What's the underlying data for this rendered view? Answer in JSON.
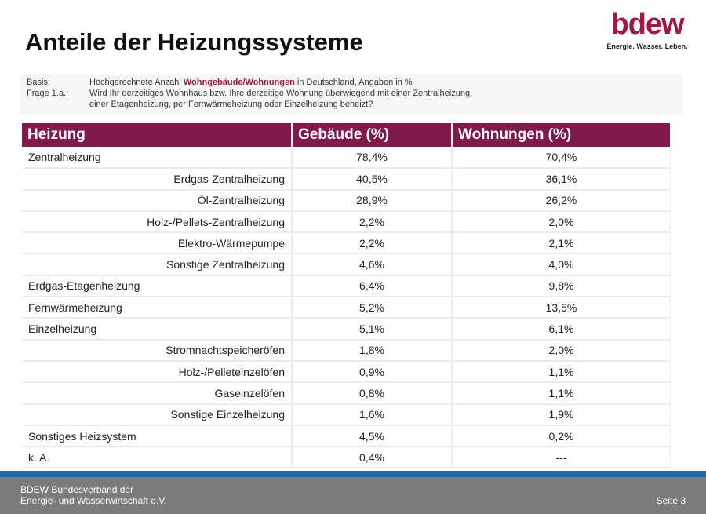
{
  "title": "Anteile der Heizungssysteme",
  "logo": {
    "word": "bdew",
    "tagline": "Energie. Wasser. Leben."
  },
  "info": {
    "basis_label": "Basis:",
    "basis_pre": "Hochgerechnete Anzahl ",
    "basis_hl": "Wohngebäude/Wohnungen",
    "basis_post": " in Deutschland, Angaben in %",
    "frage_label": "Frage 1.a.:",
    "frage_line1": "Wird Ihr derzeitiges Wohnhaus bzw. Ihre derzeitige Wohnung überwiegend mit einer Zentralheizung,",
    "frage_line2": "einer Etagenheizung, per Fernwärmeheizung oder Einzelheizung beheizt?"
  },
  "table": {
    "headers": [
      "Heizung",
      "Gebäude (%)",
      "Wohnungen (%)"
    ],
    "rows": [
      {
        "label": "Zentralheizung",
        "sub": false,
        "gebaeude": "78,4%",
        "wohnungen": "70,4%"
      },
      {
        "label": "Erdgas-Zentralheizung",
        "sub": true,
        "gebaeude": "40,5%",
        "wohnungen": "36,1%"
      },
      {
        "label": "Öl-Zentralheizung",
        "sub": true,
        "gebaeude": "28,9%",
        "wohnungen": "26,2%"
      },
      {
        "label": "Holz-/Pellets-Zentralheizung",
        "sub": true,
        "gebaeude": "2,2%",
        "wohnungen": "2,0%"
      },
      {
        "label": "Elektro-Wärmepumpe",
        "sub": true,
        "gebaeude": "2,2%",
        "wohnungen": "2,1%"
      },
      {
        "label": "Sonstige Zentralheizung",
        "sub": true,
        "gebaeude": "4,6%",
        "wohnungen": "4,0%"
      },
      {
        "label": "Erdgas-Etagenheizung",
        "sub": false,
        "gebaeude": "6,4%",
        "wohnungen": "9,8%"
      },
      {
        "label": "Fernwärmeheizung",
        "sub": false,
        "gebaeude": "5,2%",
        "wohnungen": "13,5%"
      },
      {
        "label": "Einzelheizung",
        "sub": false,
        "gebaeude": "5,1%",
        "wohnungen": "6,1%"
      },
      {
        "label": "Stromnachtspeicheröfen",
        "sub": true,
        "gebaeude": "1,8%",
        "wohnungen": "2,0%"
      },
      {
        "label": "Holz-/Pelleteinzelöfen",
        "sub": true,
        "gebaeude": "0,9%",
        "wohnungen": "1,1%"
      },
      {
        "label": "Gaseinzelöfen",
        "sub": true,
        "gebaeude": "0,8%",
        "wohnungen": "1,1%"
      },
      {
        "label": "Sonstige Einzelheizung",
        "sub": true,
        "gebaeude": "1,6%",
        "wohnungen": "1,9%"
      },
      {
        "label": "Sonstiges Heizsystem",
        "sub": false,
        "gebaeude": "4,5%",
        "wohnungen": "0,2%"
      },
      {
        "label": "k. A.",
        "sub": false,
        "gebaeude": "0,4%",
        "wohnungen": "---"
      }
    ]
  },
  "footer": {
    "org_line1": "BDEW Bundesverband der",
    "org_line2": "Energie- und Wasserwirtschaft e.V.",
    "page": "Seite 3"
  }
}
